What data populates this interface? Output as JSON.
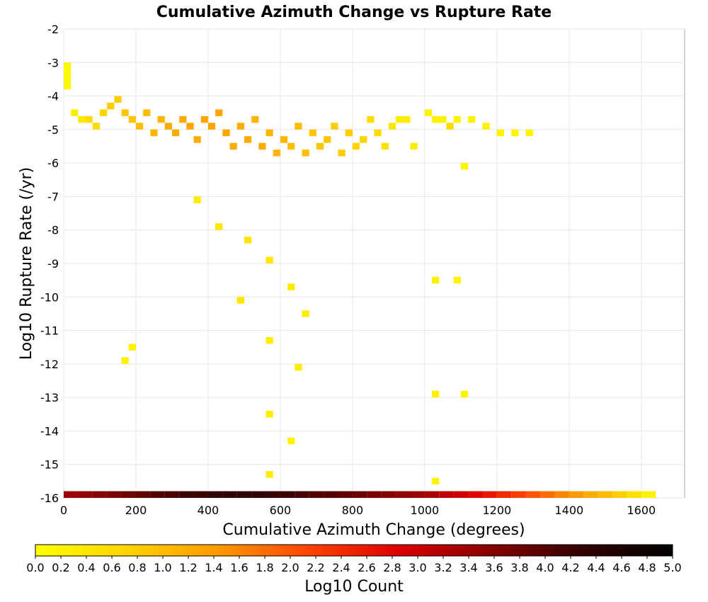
{
  "chart_data": {
    "type": "heatmap",
    "title": "Cumulative Azimuth Change vs Rupture Rate",
    "xlabel": "Cumulative Azimuth Change (degrees)",
    "ylabel": "Log10 Rupture Rate (/yr)",
    "xlim": [
      0,
      1720
    ],
    "ylim": [
      -16,
      -2
    ],
    "x_ticks": [
      "0",
      "200",
      "400",
      "600",
      "800",
      "1000",
      "1200",
      "1400",
      "1600"
    ],
    "y_ticks": [
      "-2",
      "-3",
      "-4",
      "-5",
      "-6",
      "-7",
      "-8",
      "-9",
      "-10",
      "-11",
      "-12",
      "-13",
      "-14",
      "-15",
      "-16"
    ],
    "grid": true,
    "colorbar": {
      "label": "Log10 Count",
      "range": [
        0,
        5
      ],
      "ticks": [
        "0.0",
        "0.2",
        "0.4",
        "0.6",
        "0.8",
        "1.0",
        "1.2",
        "1.4",
        "1.6",
        "1.8",
        "2.0",
        "2.2",
        "2.4",
        "2.6",
        "2.8",
        "3.0",
        "3.2",
        "3.4",
        "3.6",
        "3.8",
        "4.0",
        "4.2",
        "4.4",
        "4.6",
        "4.8",
        "5.0"
      ],
      "colors": [
        "#ffff00",
        "#ffd400",
        "#ff9900",
        "#ff4400",
        "#dd0000",
        "#880000",
        "#330000",
        "#000000"
      ]
    },
    "bin_size_x": 20,
    "bin_size_y": 0.2,
    "cells_note": "x,y are bin lower-left corners in data units; v is Log10 Count",
    "cells": [
      {
        "x": 0,
        "y": -3.8,
        "v": 0.1
      },
      {
        "x": 0,
        "y": -3.6,
        "v": 0.1
      },
      {
        "x": 0,
        "y": -3.4,
        "v": 0.1
      },
      {
        "x": 0,
        "y": -3.2,
        "v": 0.1
      },
      {
        "x": 20,
        "y": -4.6,
        "v": 0.3
      },
      {
        "x": 40,
        "y": -4.8,
        "v": 0.4
      },
      {
        "x": 60,
        "y": -4.8,
        "v": 0.6
      },
      {
        "x": 80,
        "y": -5.0,
        "v": 0.6
      },
      {
        "x": 100,
        "y": -4.6,
        "v": 0.7
      },
      {
        "x": 120,
        "y": -4.4,
        "v": 0.8
      },
      {
        "x": 140,
        "y": -4.2,
        "v": 0.8
      },
      {
        "x": 160,
        "y": -4.6,
        "v": 0.9
      },
      {
        "x": 180,
        "y": -4.8,
        "v": 0.9
      },
      {
        "x": 200,
        "y": -5.0,
        "v": 1.0
      },
      {
        "x": 220,
        "y": -4.6,
        "v": 1.0
      },
      {
        "x": 240,
        "y": -5.2,
        "v": 1.1
      },
      {
        "x": 260,
        "y": -4.8,
        "v": 1.1
      },
      {
        "x": 280,
        "y": -5.0,
        "v": 1.2
      },
      {
        "x": 300,
        "y": -5.2,
        "v": 1.2
      },
      {
        "x": 320,
        "y": -4.8,
        "v": 1.2
      },
      {
        "x": 340,
        "y": -5.0,
        "v": 1.3
      },
      {
        "x": 360,
        "y": -5.4,
        "v": 1.2
      },
      {
        "x": 380,
        "y": -4.8,
        "v": 1.3
      },
      {
        "x": 400,
        "y": -5.0,
        "v": 1.3
      },
      {
        "x": 420,
        "y": -4.6,
        "v": 1.3
      },
      {
        "x": 440,
        "y": -5.2,
        "v": 1.3
      },
      {
        "x": 460,
        "y": -5.6,
        "v": 1.2
      },
      {
        "x": 480,
        "y": -5.0,
        "v": 1.2
      },
      {
        "x": 500,
        "y": -5.4,
        "v": 1.2
      },
      {
        "x": 520,
        "y": -4.8,
        "v": 1.1
      },
      {
        "x": 540,
        "y": -5.6,
        "v": 1.2
      },
      {
        "x": 560,
        "y": -5.2,
        "v": 1.1
      },
      {
        "x": 580,
        "y": -5.8,
        "v": 1.1
      },
      {
        "x": 600,
        "y": -5.4,
        "v": 1.1
      },
      {
        "x": 620,
        "y": -5.6,
        "v": 1.0
      },
      {
        "x": 640,
        "y": -5.0,
        "v": 1.0
      },
      {
        "x": 660,
        "y": -5.8,
        "v": 1.0
      },
      {
        "x": 680,
        "y": -5.2,
        "v": 0.9
      },
      {
        "x": 700,
        "y": -5.6,
        "v": 0.9
      },
      {
        "x": 720,
        "y": -5.4,
        "v": 0.9
      },
      {
        "x": 740,
        "y": -5.0,
        "v": 0.8
      },
      {
        "x": 760,
        "y": -5.8,
        "v": 0.8
      },
      {
        "x": 780,
        "y": -5.2,
        "v": 0.8
      },
      {
        "x": 800,
        "y": -5.6,
        "v": 0.7
      },
      {
        "x": 820,
        "y": -5.4,
        "v": 0.7
      },
      {
        "x": 840,
        "y": -4.8,
        "v": 0.6
      },
      {
        "x": 860,
        "y": -5.2,
        "v": 0.6
      },
      {
        "x": 880,
        "y": -5.6,
        "v": 0.5
      },
      {
        "x": 900,
        "y": -5.0,
        "v": 0.4
      },
      {
        "x": 920,
        "y": -4.8,
        "v": 0.3
      },
      {
        "x": 940,
        "y": -4.8,
        "v": 0.3
      },
      {
        "x": 960,
        "y": -5.6,
        "v": 0.3
      },
      {
        "x": 1000,
        "y": -4.6,
        "v": 0.2
      },
      {
        "x": 1020,
        "y": -4.8,
        "v": 0.2
      },
      {
        "x": 1040,
        "y": -4.8,
        "v": 0.2
      },
      {
        "x": 1080,
        "y": -4.8,
        "v": 0.2
      },
      {
        "x": 1120,
        "y": -4.8,
        "v": 0.2
      },
      {
        "x": 1160,
        "y": -5.0,
        "v": 0.2
      },
      {
        "x": 1200,
        "y": -5.2,
        "v": 0.2
      },
      {
        "x": 1240,
        "y": -5.2,
        "v": 0.2
      },
      {
        "x": 1280,
        "y": -5.2,
        "v": 0.2
      },
      {
        "x": 1100,
        "y": -6.2,
        "v": 0.2
      },
      {
        "x": 1060,
        "y": -5.0,
        "v": 0.6
      },
      {
        "x": 360,
        "y": -7.2,
        "v": 0.3
      },
      {
        "x": 420,
        "y": -8.0,
        "v": 0.4
      },
      {
        "x": 500,
        "y": -8.4,
        "v": 0.4
      },
      {
        "x": 560,
        "y": -9.0,
        "v": 0.4
      },
      {
        "x": 620,
        "y": -9.8,
        "v": 0.3
      },
      {
        "x": 480,
        "y": -10.2,
        "v": 0.4
      },
      {
        "x": 660,
        "y": -10.6,
        "v": 0.3
      },
      {
        "x": 560,
        "y": -11.4,
        "v": 0.3
      },
      {
        "x": 640,
        "y": -12.2,
        "v": 0.3
      },
      {
        "x": 560,
        "y": -13.6,
        "v": 0.3
      },
      {
        "x": 620,
        "y": -14.4,
        "v": 0.2
      },
      {
        "x": 560,
        "y": -15.4,
        "v": 0.3
      },
      {
        "x": 1020,
        "y": -13.0,
        "v": 0.2
      },
      {
        "x": 1100,
        "y": -13.0,
        "v": 0.2
      },
      {
        "x": 1020,
        "y": -9.6,
        "v": 0.2
      },
      {
        "x": 1080,
        "y": -9.6,
        "v": 0.2
      },
      {
        "x": 160,
        "y": -12.0,
        "v": 0.2
      },
      {
        "x": 180,
        "y": -11.6,
        "v": 0.2
      },
      {
        "x": 1020,
        "y": -15.6,
        "v": 0.2
      }
    ],
    "baseline_row": {
      "y": -16.0,
      "x": [
        0,
        40,
        80,
        120,
        160,
        200,
        240,
        280,
        320,
        360,
        400,
        440,
        480,
        520,
        560,
        600,
        640,
        680,
        720,
        760,
        800,
        840,
        880,
        920,
        960,
        1000,
        1040,
        1080,
        1120,
        1160,
        1200,
        1240,
        1280,
        1320,
        1360,
        1400,
        1440,
        1480,
        1520,
        1560,
        1600
      ],
      "v": [
        3.4,
        3.5,
        3.6,
        3.7,
        3.8,
        3.9,
        4.0,
        4.1,
        4.2,
        4.2,
        4.3,
        4.3,
        4.3,
        4.3,
        4.2,
        4.2,
        4.1,
        4.0,
        4.0,
        3.9,
        3.8,
        3.7,
        3.6,
        3.5,
        3.4,
        3.3,
        3.1,
        3.0,
        2.8,
        2.6,
        2.4,
        2.2,
        2.0,
        1.8,
        1.6,
        1.4,
        1.2,
        1.0,
        0.8,
        0.5,
        0.2
      ]
    }
  }
}
